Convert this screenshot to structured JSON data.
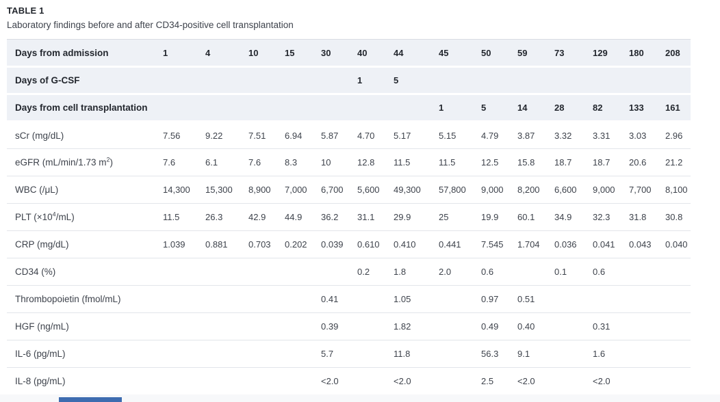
{
  "colors": {
    "accent": "#3e6cb0",
    "header_row_bg": "#eef1f6",
    "heading_text": "#23272e",
    "text": "#3d424b",
    "border": "#e2e5ea",
    "table_top_border": "#d9dce2",
    "table_bottom_border": "#c9cdd4",
    "footer_strip_bg": "#f7f8fa"
  },
  "header": {
    "table_label": "TABLE 1",
    "caption": "Laboratory findings before and after CD34-positive cell transplantation"
  },
  "table": {
    "rows": [
      {
        "label_pre": "Days from admission",
        "label_sup": "",
        "label_post": "",
        "header": true,
        "values": [
          "1",
          "4",
          "10",
          "15",
          "30",
          "40",
          "44",
          "45",
          "50",
          "59",
          "73",
          "129",
          "180",
          "208"
        ]
      },
      {
        "label_pre": "Days of G-CSF",
        "label_sup": "",
        "label_post": "",
        "header": true,
        "values": [
          "",
          "",
          "",
          "",
          "",
          "1",
          "5",
          "",
          "",
          "",
          "",
          "",
          "",
          ""
        ]
      },
      {
        "label_pre": "Days from cell transplantation",
        "label_sup": "",
        "label_post": "",
        "header": true,
        "values": [
          "",
          "",
          "",
          "",
          "",
          "",
          "",
          "1",
          "5",
          "14",
          "28",
          "82",
          "133",
          "161"
        ]
      },
      {
        "label_pre": "sCr (mg/dL)",
        "label_sup": "",
        "label_post": "",
        "header": false,
        "values": [
          "7.56",
          "9.22",
          "7.51",
          "6.94",
          "5.87",
          "4.70",
          "5.17",
          "5.15",
          "4.79",
          "3.87",
          "3.32",
          "3.31",
          "3.03",
          "2.96"
        ]
      },
      {
        "label_pre": "eGFR (mL/min/1.73 m",
        "label_sup": "2",
        "label_post": ")",
        "header": false,
        "values": [
          "7.6",
          "6.1",
          "7.6",
          "8.3",
          "10",
          "12.8",
          "11.5",
          "11.5",
          "12.5",
          "15.8",
          "18.7",
          "18.7",
          "20.6",
          "21.2"
        ]
      },
      {
        "label_pre": "WBC (/μL)",
        "label_sup": "",
        "label_post": "",
        "header": false,
        "values": [
          "14,300",
          "15,300",
          "8,900",
          "7,000",
          "6,700",
          "5,600",
          "49,300",
          "57,800",
          "9,000",
          "8,200",
          "6,600",
          "9,000",
          "7,700",
          "8,100"
        ]
      },
      {
        "label_pre": "PLT (×10",
        "label_sup": "4",
        "label_post": "/mL)",
        "header": false,
        "values": [
          "11.5",
          "26.3",
          "42.9",
          "44.9",
          "36.2",
          "31.1",
          "29.9",
          "25",
          "19.9",
          "60.1",
          "34.9",
          "32.3",
          "31.8",
          "30.8"
        ]
      },
      {
        "label_pre": "CRP (mg/dL)",
        "label_sup": "",
        "label_post": "",
        "header": false,
        "values": [
          "1.039",
          "0.881",
          "0.703",
          "0.202",
          "0.039",
          "0.610",
          "0.410",
          "0.441",
          "7.545",
          "1.704",
          "0.036",
          "0.041",
          "0.043",
          "0.040"
        ]
      },
      {
        "label_pre": "CD34 (%)",
        "label_sup": "",
        "label_post": "",
        "header": false,
        "values": [
          "",
          "",
          "",
          "",
          "",
          "0.2",
          "1.8",
          "2.0",
          "0.6",
          "",
          "0.1",
          "0.6",
          "",
          ""
        ]
      },
      {
        "label_pre": "Thrombopoietin (fmol/mL)",
        "label_sup": "",
        "label_post": "",
        "header": false,
        "values": [
          "",
          "",
          "",
          "",
          "0.41",
          "",
          "1.05",
          "",
          "0.97",
          "0.51",
          "",
          "",
          "",
          ""
        ]
      },
      {
        "label_pre": "HGF (ng/mL)",
        "label_sup": "",
        "label_post": "",
        "header": false,
        "values": [
          "",
          "",
          "",
          "",
          "0.39",
          "",
          "1.82",
          "",
          "0.49",
          "0.40",
          "",
          "0.31",
          "",
          ""
        ]
      },
      {
        "label_pre": "IL-6 (pg/mL)",
        "label_sup": "",
        "label_post": "",
        "header": false,
        "values": [
          "",
          "",
          "",
          "",
          "5.7",
          "",
          "11.8",
          "",
          "56.3",
          "9.1",
          "",
          "1.6",
          "",
          ""
        ]
      },
      {
        "label_pre": "IL-8 (pg/mL)",
        "label_sup": "",
        "label_post": "",
        "header": false,
        "values": [
          "",
          "",
          "",
          "",
          "<2.0",
          "",
          "<2.0",
          "",
          "2.5",
          "<2.0",
          "",
          "<2.0",
          "",
          ""
        ]
      }
    ]
  }
}
